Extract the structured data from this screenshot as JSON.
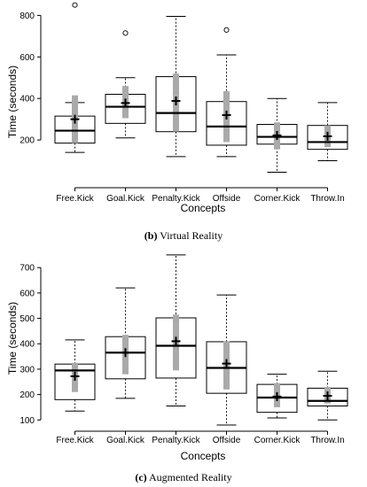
{
  "chart_data": [
    {
      "type": "boxplot",
      "caption_label": "(b)",
      "caption_text": "Virtual Reality",
      "ylabel": "Time (seconds)",
      "xlabel": "Concepts",
      "ylim": [
        0,
        840
      ],
      "yticks": [
        200,
        400,
        600,
        800
      ],
      "categories": [
        "Free.Kick",
        "Goal.Kick",
        "Penalty.Kick",
        "Offside",
        "Corner.Kick",
        "Throw.In"
      ],
      "boxes": [
        {
          "whisker_low": 140,
          "q1": 185,
          "median": 245,
          "q3": 315,
          "whisker_high": 380,
          "mean": 300,
          "ci_low": 185,
          "ci_high": 415,
          "outliers": [
            850
          ]
        },
        {
          "whisker_low": 210,
          "q1": 280,
          "median": 360,
          "q3": 420,
          "whisker_high": 500,
          "mean": 378,
          "ci_low": 305,
          "ci_high": 460,
          "outliers": [
            715
          ]
        },
        {
          "whisker_low": 120,
          "q1": 240,
          "median": 330,
          "q3": 505,
          "whisker_high": 795,
          "mean": 388,
          "ci_low": 240,
          "ci_high": 520,
          "outliers": []
        },
        {
          "whisker_low": 120,
          "q1": 175,
          "median": 265,
          "q3": 385,
          "whisker_high": 610,
          "mean": 320,
          "ci_low": 190,
          "ci_high": 435,
          "outliers": [
            730
          ]
        },
        {
          "whisker_low": 45,
          "q1": 180,
          "median": 215,
          "q3": 275,
          "whisker_high": 400,
          "mean": 222,
          "ci_low": 155,
          "ci_high": 285,
          "outliers": []
        },
        {
          "whisker_low": 100,
          "q1": 155,
          "median": 190,
          "q3": 270,
          "whisker_high": 380,
          "mean": 218,
          "ci_low": 165,
          "ci_high": 270,
          "outliers": []
        }
      ]
    },
    {
      "type": "boxplot",
      "caption_label": "(c)",
      "caption_text": "Augmented Reality",
      "ylabel": "Time (seconds)",
      "xlabel": "Concepts",
      "ylim": [
        80,
        760
      ],
      "yticks": [
        100,
        200,
        300,
        400,
        500,
        600,
        700
      ],
      "categories": [
        "Free.Kick",
        "Goal.Kick",
        "Penalty.Kick",
        "Offside",
        "Corner.Kick",
        "Throw.In"
      ],
      "boxes": [
        {
          "whisker_low": 135,
          "q1": 180,
          "median": 295,
          "q3": 320,
          "whisker_high": 415,
          "mean": 272,
          "ci_low": 210,
          "ci_high": 325,
          "outliers": []
        },
        {
          "whisker_low": 185,
          "q1": 262,
          "median": 365,
          "q3": 428,
          "whisker_high": 620,
          "mean": 365,
          "ci_low": 280,
          "ci_high": 435,
          "outliers": []
        },
        {
          "whisker_low": 155,
          "q1": 265,
          "median": 392,
          "q3": 502,
          "whisker_high": 750,
          "mean": 410,
          "ci_low": 295,
          "ci_high": 515,
          "outliers": []
        },
        {
          "whisker_low": 80,
          "q1": 205,
          "median": 305,
          "q3": 408,
          "whisker_high": 592,
          "mean": 322,
          "ci_low": 220,
          "ci_high": 410,
          "outliers": []
        },
        {
          "whisker_low": 108,
          "q1": 130,
          "median": 188,
          "q3": 240,
          "whisker_high": 280,
          "mean": 192,
          "ci_low": 150,
          "ci_high": 245,
          "outliers": []
        },
        {
          "whisker_low": 100,
          "q1": 155,
          "median": 175,
          "q3": 225,
          "whisker_high": 292,
          "mean": 195,
          "ci_low": 165,
          "ci_high": 230,
          "outliers": []
        }
      ]
    }
  ]
}
